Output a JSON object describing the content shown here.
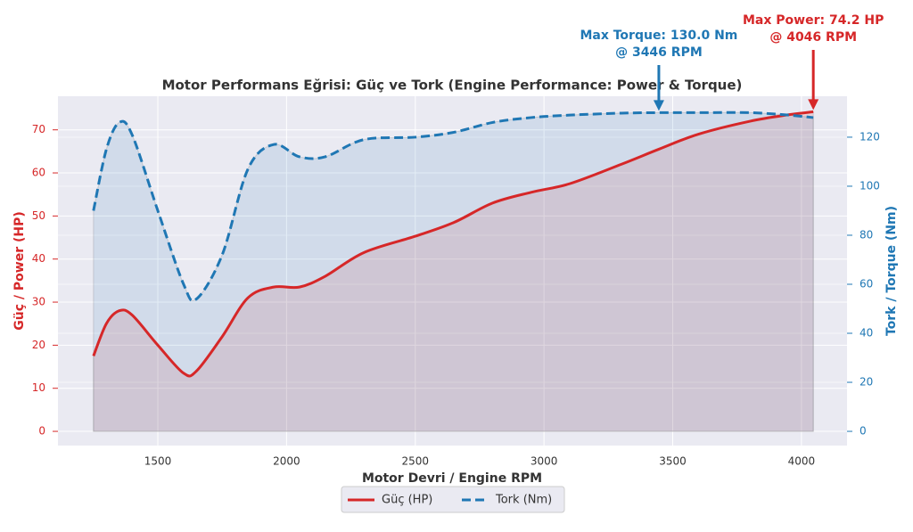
{
  "chart_data": {
    "type": "line",
    "title": "Motor Performans Eğrisi: Güç ve Tork (Engine Performance: Power & Torque)",
    "x_label": "Motor Devri / Engine RPM",
    "y_label": "Güç / Power (HP)",
    "y2_label": "Tork / Torque (Nm)",
    "x": [
      1250,
      1300,
      1350,
      1400,
      1500,
      1600,
      1650,
      1750,
      1850,
      1950,
      2050,
      2150,
      2300,
      2500,
      2650,
      2800,
      2950,
      3100,
      3300,
      3446,
      3600,
      3800,
      3950,
      4046
    ],
    "series": [
      {
        "name": "Güç (HP)",
        "color": "#d62728",
        "axis": "y",
        "style": "solid",
        "values": [
          17.5,
          25,
          28,
          27,
          20,
          13.5,
          14,
          22,
          31,
          33.5,
          33.5,
          36,
          41.5,
          45.3,
          48.5,
          53,
          55.5,
          57.5,
          62,
          65.5,
          69,
          72,
          73.5,
          74.2
        ]
      },
      {
        "name": "Tork (Nm)",
        "color": "#1f77b4",
        "axis": "y2",
        "style": "dashed",
        "values": [
          90,
          115,
          126,
          121,
          90,
          60,
          54,
          72,
          107,
          117,
          112,
          112,
          119,
          120,
          122,
          126,
          128,
          129,
          129.8,
          130,
          130,
          130,
          129,
          128
        ]
      }
    ],
    "annotations": [
      {
        "lines": [
          "Max Torque: 130.0 Nm",
          "@ 3446 RPM"
        ],
        "x": 3446,
        "y": 130,
        "axis": "y2",
        "color": "#1f77b4"
      },
      {
        "lines": [
          "Max Power: 74.2 HP",
          "@ 4046 RPM"
        ],
        "x": 4046,
        "y": 74.2,
        "axis": "y",
        "color": "#d62728"
      }
    ],
    "xlim": [
      1112,
      4177
    ],
    "ylim": [
      -3.3,
      77.8
    ],
    "y2lim": [
      -5.8,
      136.7
    ],
    "xticks": [
      1500,
      2000,
      2500,
      3000,
      3500,
      4000
    ],
    "yticks": [
      0,
      10,
      20,
      30,
      40,
      50,
      60,
      70
    ],
    "y2ticks": [
      0,
      20,
      40,
      60,
      80,
      100,
      120
    ],
    "grid": true,
    "legend": "bottom"
  }
}
